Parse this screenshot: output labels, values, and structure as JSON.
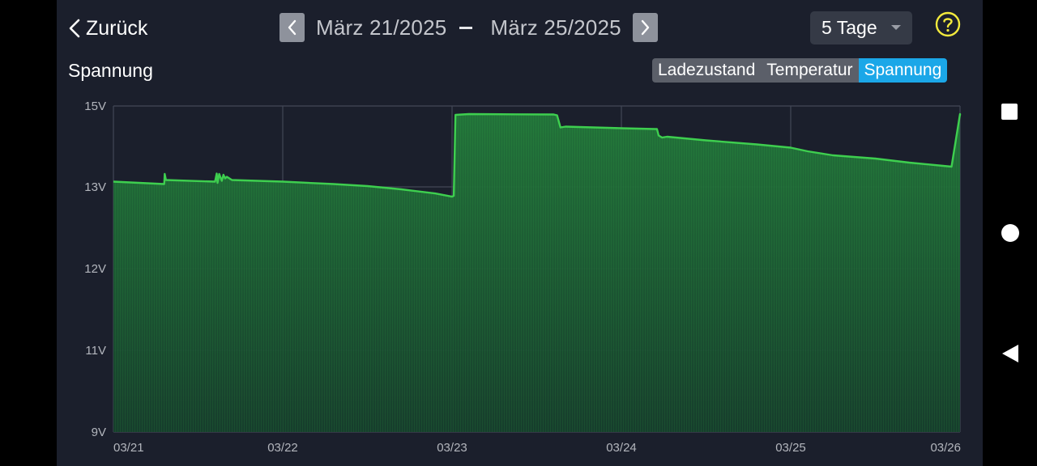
{
  "header": {
    "back_label": "Zurück",
    "date_start": "März 21/2025",
    "date_end": "März 25/2025",
    "range_value": "5 Tage"
  },
  "section_title": "Spannung",
  "tabs": [
    {
      "label": "Ladezustand",
      "active": false
    },
    {
      "label": "Temperatur",
      "active": false
    },
    {
      "label": "Spannung",
      "active": true
    }
  ],
  "colors": {
    "accent": "#1ba7e8",
    "line": "#3ecf4f",
    "fill": "#1f6b35",
    "background": "#1b1f2c",
    "help": "#f3ea3c"
  },
  "icons": {
    "back": "chevron-left-icon",
    "prev": "chevron-left-icon",
    "next": "chevron-right-icon",
    "dropdown": "caret-down-icon",
    "help": "help-circle-icon",
    "nav_recents": "square-icon",
    "nav_home": "circle-icon",
    "nav_back": "triangle-back-icon"
  },
  "chart_data": {
    "type": "area",
    "xlabel": "",
    "ylabel": "",
    "x_ticks": [
      "03/21",
      "03/22",
      "03/23",
      "03/24",
      "03/25",
      "03/26"
    ],
    "y_ticks": [
      {
        "value": 9,
        "label": "9V"
      },
      {
        "value": 11,
        "label": "11V"
      },
      {
        "value": 12,
        "label": "12V"
      },
      {
        "value": 13,
        "label": "13V"
      },
      {
        "value": 15,
        "label": "15V"
      }
    ],
    "grid": true,
    "x_range_days": [
      0,
      5
    ],
    "series": [
      {
        "points": [
          [
            0.0,
            13.13
          ],
          [
            0.3,
            13.07
          ],
          [
            0.303,
            13.32
          ],
          [
            0.31,
            13.17
          ],
          [
            0.6,
            13.13
          ],
          [
            0.61,
            13.33
          ],
          [
            0.615,
            13.1
          ],
          [
            0.625,
            13.32
          ],
          [
            0.64,
            13.15
          ],
          [
            0.65,
            13.3
          ],
          [
            0.66,
            13.21
          ],
          [
            0.67,
            13.25
          ],
          [
            0.7,
            13.17
          ],
          [
            1.0,
            13.13
          ],
          [
            1.3,
            13.07
          ],
          [
            1.5,
            13.02
          ],
          [
            1.7,
            12.97
          ],
          [
            1.9,
            12.92
          ],
          [
            2.0,
            12.88
          ],
          [
            2.01,
            12.89
          ],
          [
            2.02,
            14.78
          ],
          [
            2.1,
            14.8
          ],
          [
            2.6,
            14.79
          ],
          [
            2.62,
            14.77
          ],
          [
            2.64,
            14.47
          ],
          [
            2.67,
            14.49
          ],
          [
            3.0,
            14.45
          ],
          [
            3.2,
            14.43
          ],
          [
            3.21,
            14.43
          ],
          [
            3.22,
            14.27
          ],
          [
            3.24,
            14.22
          ],
          [
            3.27,
            14.24
          ],
          [
            3.5,
            14.15
          ],
          [
            3.8,
            14.05
          ],
          [
            4.0,
            13.97
          ],
          [
            4.1,
            13.88
          ],
          [
            4.25,
            13.78
          ],
          [
            4.5,
            13.7
          ],
          [
            4.7,
            13.6
          ],
          [
            4.9,
            13.52
          ],
          [
            4.95,
            13.5
          ],
          [
            5.0,
            14.8
          ],
          [
            5.05,
            14.8
          ],
          [
            5.5,
            14.77
          ]
        ]
      }
    ]
  }
}
